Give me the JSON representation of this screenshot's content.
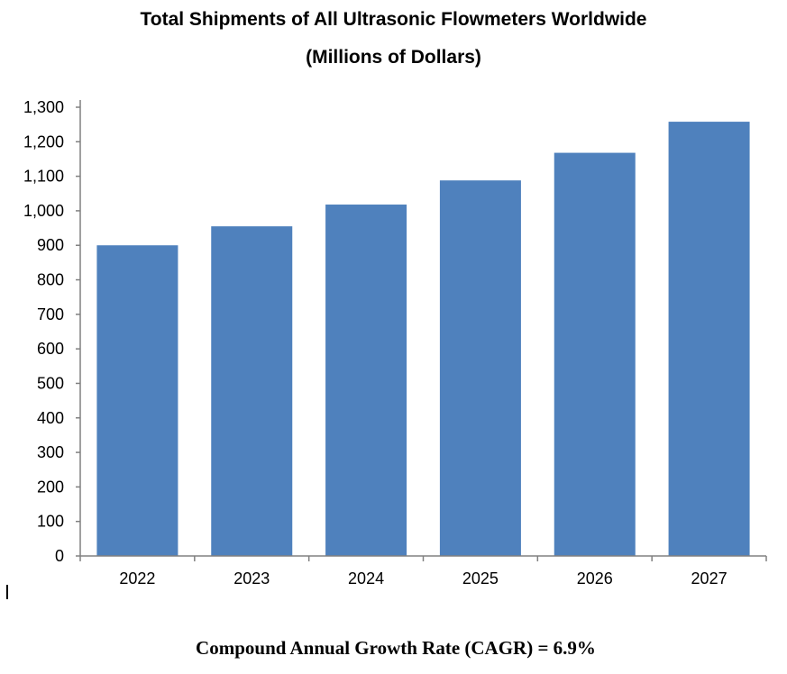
{
  "chart_data": {
    "type": "bar",
    "title": "Total Shipments of All Ultrasonic Flowmeters Worldwide",
    "subtitle": "(Millions of Dollars)",
    "categories": [
      "2022",
      "2023",
      "2024",
      "2025",
      "2026",
      "2027"
    ],
    "values": [
      900,
      955,
      1018,
      1088,
      1168,
      1258
    ],
    "ylim": [
      0,
      1300
    ],
    "yticks": [
      0,
      100,
      200,
      300,
      400,
      500,
      600,
      700,
      800,
      900,
      1000,
      1100,
      1200,
      1300
    ],
    "ytick_labels": [
      "0",
      "100",
      "200",
      "300",
      "400",
      "500",
      "600",
      "700",
      "800",
      "900",
      "1,000",
      "1,100",
      "1,200",
      "1,300"
    ],
    "xlabel": "",
    "ylabel": "",
    "grid": false,
    "bar_color": "#4f81bd",
    "axis_color": "#808080"
  },
  "footnote": "Compound Annual Growth Rate (CAGR) = 6.9%"
}
